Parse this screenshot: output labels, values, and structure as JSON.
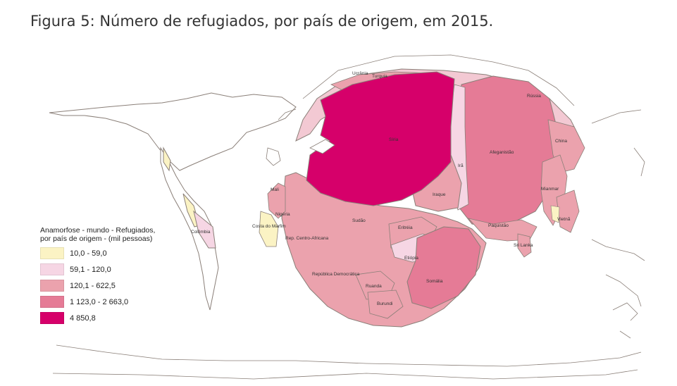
{
  "title": "Figura 5: Número de refugiados, por país de origem, em 2015.",
  "legend": {
    "title_line1": "Anamorfose - mundo - Refugiados,",
    "title_line2": "por país de origem - (mil pessoas)",
    "classes": [
      {
        "label": "10,0 - 59,0",
        "color": "#fbf3c4"
      },
      {
        "label": "59,1 - 120,0",
        "color": "#f6d6e4"
      },
      {
        "label": "120,1 - 622,5",
        "color": "#eba2ad"
      },
      {
        "label": "1 123,0 - 2 663,0",
        "color": "#e57b96"
      },
      {
        "label": "4 850,8",
        "color": "#d6006a"
      }
    ]
  },
  "countries": [
    {
      "name": "Ucrânia",
      "class": 2
    },
    {
      "name": "Turquia",
      "class": 2
    },
    {
      "name": "Rússia",
      "class": 2
    },
    {
      "name": "Síria",
      "class": 4
    },
    {
      "name": "Irã",
      "class": 1
    },
    {
      "name": "Afeganistão",
      "class": 3
    },
    {
      "name": "China",
      "class": 2
    },
    {
      "name": "Iraque",
      "class": 2
    },
    {
      "name": "Mianmar",
      "class": 2
    },
    {
      "name": "Paquistão",
      "class": 2
    },
    {
      "name": "Vietnã",
      "class": 2
    },
    {
      "name": "Sri Lanka",
      "class": 2
    },
    {
      "name": "Mali",
      "class": 2
    },
    {
      "name": "Nigéria",
      "class": 0
    },
    {
      "name": "Costa do Marfim",
      "class": 0
    },
    {
      "name": "Sudão",
      "class": 2
    },
    {
      "name": "Eritréia",
      "class": 2
    },
    {
      "name": "Rep. Centro-Africana",
      "class": 2
    },
    {
      "name": "Etiópia",
      "class": 1
    },
    {
      "name": "Somália",
      "class": 3
    },
    {
      "name": "República Democrática",
      "class": 2
    },
    {
      "name": "Ruanda",
      "class": 2
    },
    {
      "name": "Burundi",
      "class": 2
    },
    {
      "name": "Colômbia",
      "class": 1
    }
  ]
}
